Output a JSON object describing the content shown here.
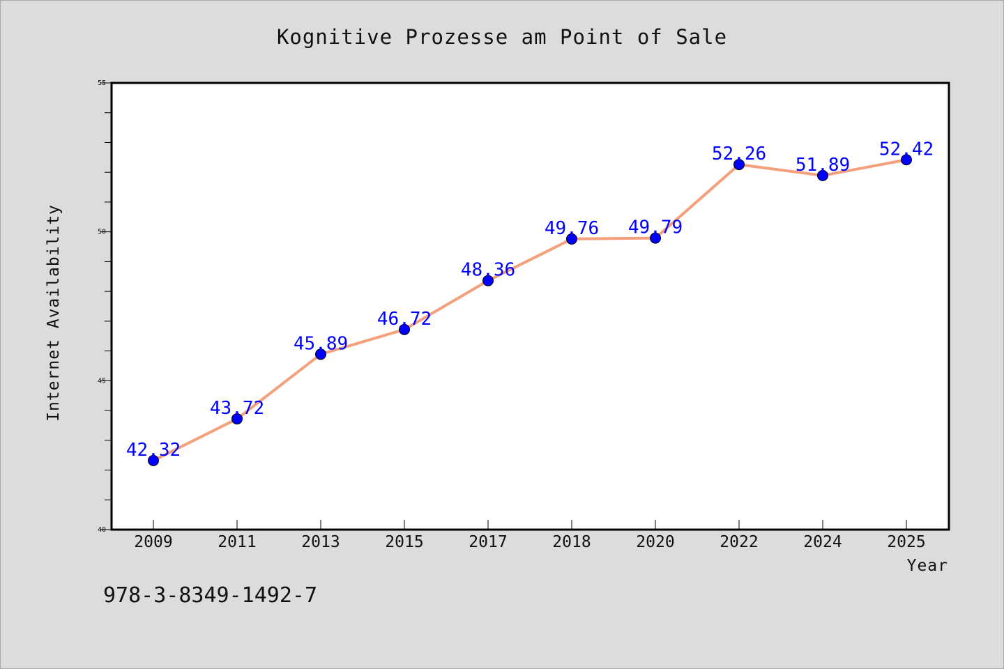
{
  "chart_data": {
    "type": "line",
    "title": "Kognitive Prozesse am Point of Sale",
    "xlabel": "Year",
    "ylabel": "Internet Availability",
    "categories": [
      "2009",
      "2011",
      "2013",
      "2015",
      "2017",
      "2018",
      "2020",
      "2022",
      "2024",
      "2025"
    ],
    "values": [
      42.32,
      43.72,
      45.89,
      46.72,
      48.36,
      49.76,
      49.79,
      52.26,
      51.89,
      52.42
    ],
    "data_labels": [
      "42.32",
      "43.72",
      "45.89",
      "46.72",
      "48.36",
      "49.76",
      "49.79",
      "52.26",
      "51.89",
      "52.42"
    ],
    "ylim": [
      40,
      55
    ],
    "y_major_ticks": [
      40,
      45,
      50,
      55
    ],
    "y_major_tick_labels": [
      "40",
      "45",
      "50",
      "55"
    ],
    "y_minor_step": 1,
    "grid": false,
    "line_color": "#f4a07c",
    "marker_color": "#0000ff",
    "label_color": "#0000ff"
  },
  "footer": {
    "isbn": "978-3-8349-1492-7"
  },
  "colors": {
    "background": "#dcdcdc",
    "plot_area": "#ffffff",
    "axis": "#000000"
  }
}
